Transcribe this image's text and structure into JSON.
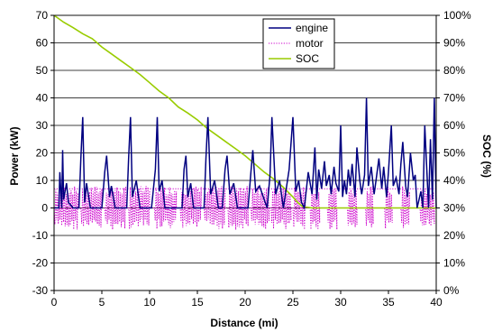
{
  "chart_data": {
    "type": "line",
    "title": "",
    "xlabel": "Distance (mi)",
    "ylabel": "Power (kW)",
    "y2label": "SOC (%)",
    "xlim": [
      0,
      40
    ],
    "ylim": [
      -30,
      70
    ],
    "y2lim": [
      0,
      100
    ],
    "x_ticks": [
      "0",
      "5",
      "10",
      "15",
      "20",
      "25",
      "30",
      "35",
      "40"
    ],
    "y_ticks": [
      "-30",
      "-20",
      "-10",
      "0",
      "10",
      "20",
      "30",
      "40",
      "50",
      "60",
      "70"
    ],
    "y2_ticks": [
      "0%",
      "10%",
      "20%",
      "30%",
      "40%",
      "50%",
      "60%",
      "70%",
      "80%",
      "90%",
      "100%"
    ],
    "grid": "horizontal",
    "legend_position": "top-right",
    "series": [
      {
        "name": "engine",
        "axis": "left",
        "color": "#000080",
        "style": "solid",
        "x": [
          0,
          0.5,
          0.6,
          0.8,
          0.9,
          1.0,
          1.3,
          1.5,
          2.0,
          2.6,
          2.8,
          3.0,
          3.2,
          3.4,
          3.8,
          5.0,
          5.3,
          5.5,
          5.8,
          6.0,
          6.4,
          7.6,
          7.8,
          8.0,
          8.2,
          8.6,
          9.0,
          10.2,
          10.6,
          10.8,
          11.0,
          11.3,
          11.6,
          12.0,
          13.4,
          13.6,
          13.8,
          14.0,
          14.3,
          14.6,
          15.0,
          15.7,
          15.9,
          16.1,
          16.4,
          16.8,
          17.2,
          17.6,
          17.9,
          18.1,
          18.4,
          18.8,
          19.2,
          20.3,
          20.6,
          20.8,
          21.1,
          21.5,
          22.3,
          22.6,
          22.8,
          23.2,
          23.6,
          24.0,
          24.6,
          25.0,
          25.3,
          25.6,
          25.9,
          26.2,
          26.6,
          27.0,
          27.3,
          27.5,
          27.7,
          28.0,
          28.3,
          28.5,
          28.8,
          29.0,
          29.3,
          29.5,
          29.8,
          30.0,
          30.2,
          30.4,
          30.6,
          30.8,
          31.0,
          31.2,
          31.5,
          31.7,
          32.0,
          32.2,
          32.5,
          32.7,
          32.9,
          33.2,
          33.5,
          33.7,
          34.0,
          34.3,
          34.5,
          34.8,
          35.0,
          35.3,
          35.5,
          35.8,
          36.1,
          36.3,
          36.5,
          36.8,
          37.0,
          37.3,
          37.6,
          37.8,
          38.0,
          38.4,
          38.6,
          38.8,
          39.2,
          39.4,
          39.6,
          39.8,
          40.0
        ],
        "y": [
          0,
          0,
          13,
          0,
          21,
          3,
          9,
          2,
          0,
          0,
          18,
          33,
          2,
          9,
          0,
          0,
          13,
          19,
          4,
          8,
          0,
          0,
          18,
          33,
          4,
          10,
          0,
          0,
          14,
          33,
          6,
          10,
          0,
          0,
          0,
          14,
          19,
          4,
          9,
          0,
          0,
          0,
          18,
          33,
          5,
          10,
          0,
          0,
          14,
          19,
          5,
          9,
          0,
          0,
          13,
          21,
          6,
          8,
          0,
          12,
          33,
          5,
          10,
          0,
          14,
          33,
          6,
          10,
          2,
          0,
          13,
          5,
          22,
          3,
          14,
          7,
          17,
          8,
          12,
          5,
          15,
          9,
          6,
          30,
          4,
          10,
          5,
          14,
          8,
          16,
          4,
          22,
          10,
          5,
          12,
          40,
          8,
          15,
          5,
          10,
          18,
          7,
          15,
          4,
          13,
          30,
          8,
          11,
          5,
          16,
          24,
          8,
          4,
          20,
          10,
          12,
          0,
          6,
          0,
          30,
          0,
          25,
          3,
          40,
          0
        ]
      },
      {
        "name": "motor",
        "axis": "left",
        "color": "#cc00cc",
        "style": "dotted",
        "baseline": 7,
        "bursts": [
          [
            0.0,
            2.5
          ],
          [
            2.8,
            5.0
          ],
          [
            5.3,
            7.5
          ],
          [
            7.8,
            10.0
          ],
          [
            10.5,
            12.8
          ],
          [
            13.2,
            15.4
          ],
          [
            15.7,
            17.9
          ],
          [
            18.2,
            20.3
          ],
          [
            20.6,
            22.5
          ],
          [
            22.7,
            24.8
          ],
          [
            25.0,
            26.3
          ],
          [
            26.8,
            27.8
          ],
          [
            28.6,
            29.6
          ],
          [
            30.7,
            31.7
          ],
          [
            32.6,
            33.4
          ],
          [
            34.6,
            35.4
          ],
          [
            36.3,
            37.2
          ],
          [
            38.3,
            39.8
          ]
        ],
        "range": [
          -8,
          8
        ]
      },
      {
        "name": "SOC",
        "axis": "right",
        "color": "#99cc00",
        "style": "solid",
        "x": [
          0,
          1,
          2,
          3,
          4,
          5,
          6,
          7,
          8,
          9,
          10,
          11,
          12,
          13,
          14,
          15,
          16,
          17,
          18,
          19,
          20,
          21,
          22,
          23,
          24,
          25,
          25.5,
          26,
          27,
          28,
          29,
          30,
          32,
          34,
          36,
          38,
          40
        ],
        "y": [
          100,
          97.5,
          95.5,
          93.3,
          91.5,
          88.5,
          86,
          83.5,
          81,
          78.5,
          75.5,
          72.5,
          70,
          66.7,
          64.5,
          62,
          59,
          56.5,
          54,
          51.5,
          49,
          46,
          43,
          40.5,
          37.5,
          34,
          32,
          30.5,
          30,
          30,
          30,
          30,
          30,
          30,
          30,
          30,
          30
        ]
      }
    ]
  }
}
